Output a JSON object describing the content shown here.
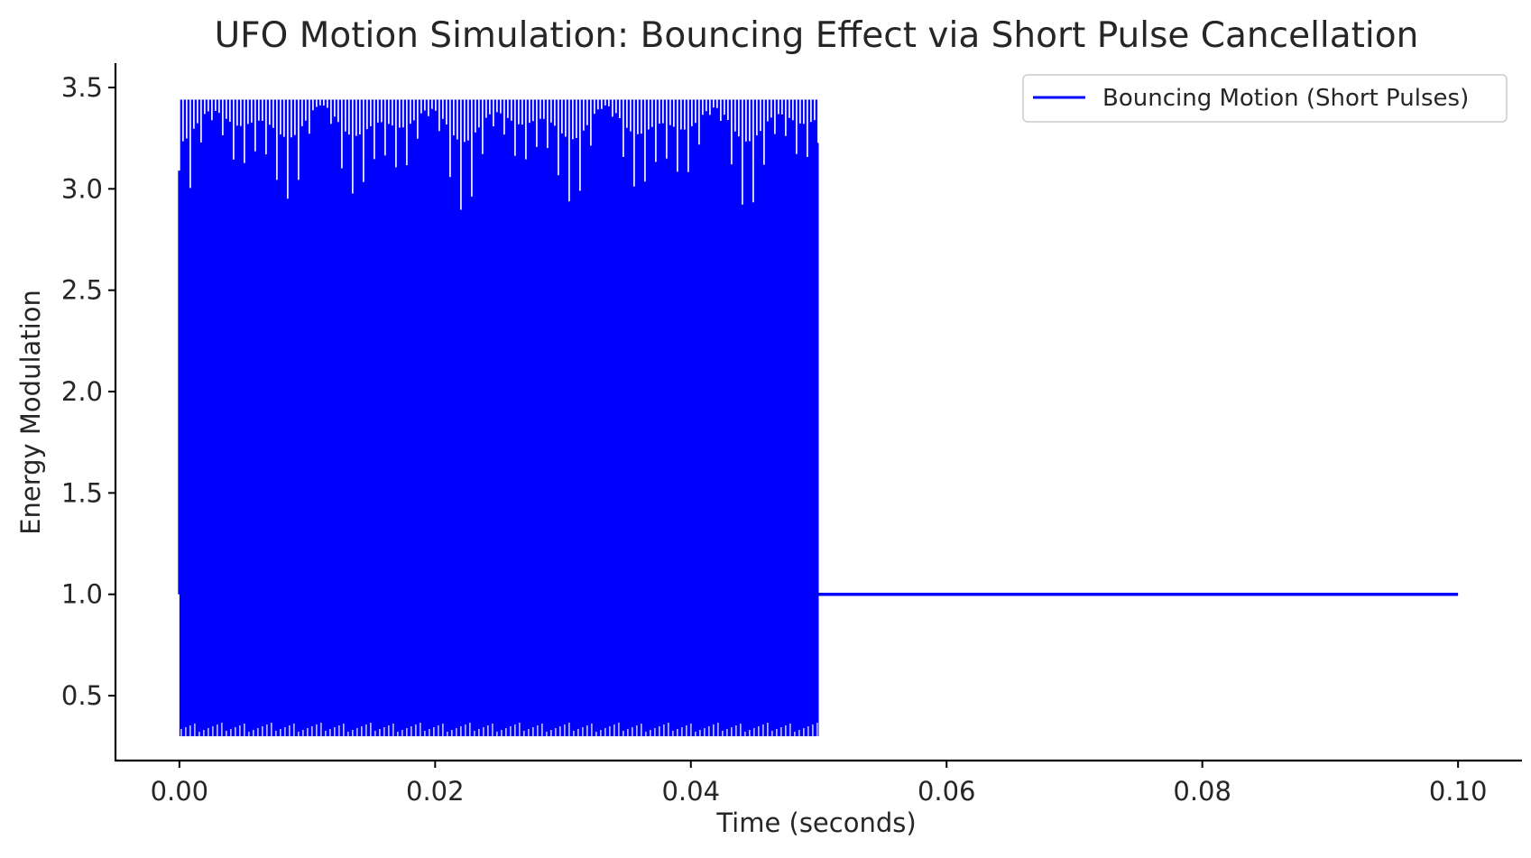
{
  "chart_data": {
    "type": "line",
    "title": "UFO Motion Simulation: Bouncing Effect via Short Pulse Cancellation",
    "xlabel": "Time (seconds)",
    "ylabel": "Energy Modulation",
    "xlim": [
      -0.005,
      0.105
    ],
    "ylim": [
      0.18,
      3.62
    ],
    "x_ticks": [
      0.0,
      0.02,
      0.04,
      0.06,
      0.08,
      0.1
    ],
    "x_tick_labels": [
      "0.00",
      "0.02",
      "0.04",
      "0.06",
      "0.08",
      "0.10"
    ],
    "y_ticks": [
      0.5,
      1.0,
      1.5,
      2.0,
      2.5,
      3.0,
      3.5
    ],
    "y_tick_labels": [
      "0.5",
      "1.0",
      "1.5",
      "2.0",
      "2.5",
      "3.0",
      "3.5"
    ],
    "grid": false,
    "legend_position": "top-right",
    "series": [
      {
        "name": "Bouncing Motion (Short Pulses)",
        "color": "#0000ff",
        "segments": [
          {
            "kind": "oscillating-band",
            "x_start": 0.0,
            "x_end": 0.05,
            "min": 0.3,
            "max": 3.44,
            "initial_value": 1.0,
            "initial_peak": 3.09
          },
          {
            "kind": "flat",
            "x_start": 0.05,
            "x_end": 0.1,
            "value": 1.0
          }
        ]
      }
    ]
  }
}
